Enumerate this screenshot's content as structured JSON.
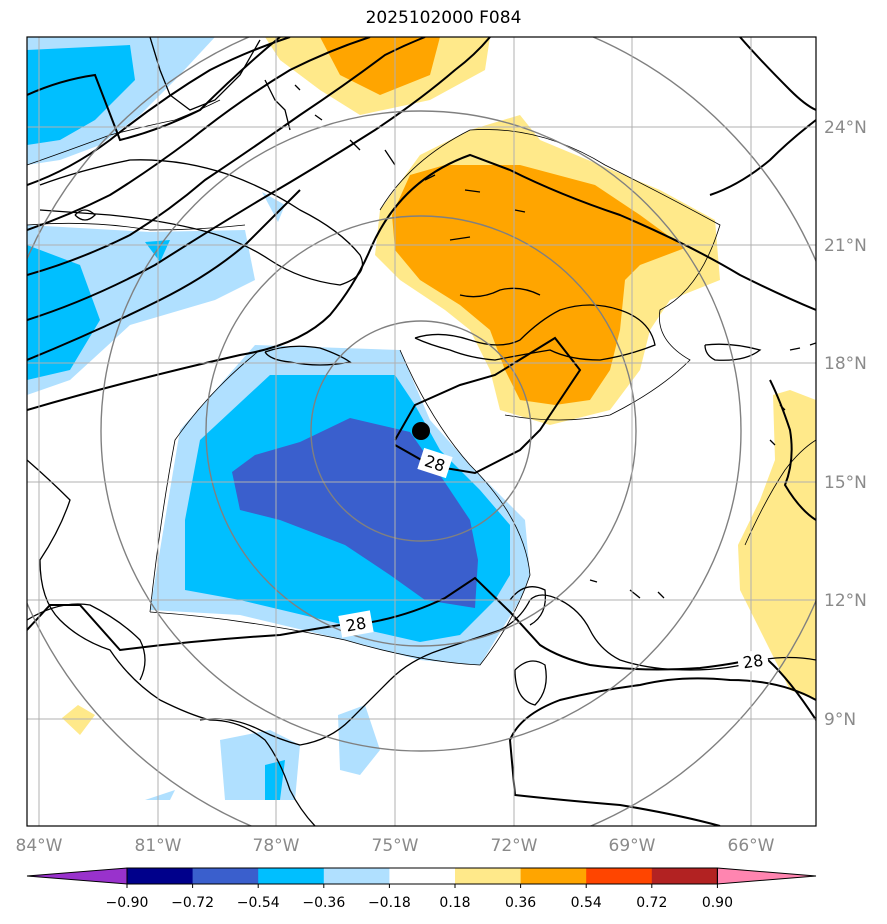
{
  "title": "2025102000 F084",
  "lon_ticks": [
    "84°W",
    "81°W",
    "78°W",
    "75°W",
    "72°W",
    "69°W",
    "66°W"
  ],
  "lat_ticks": [
    "24°N",
    "21°N",
    "18°N",
    "15°N",
    "12°N",
    "9°N"
  ],
  "contour_labels": [
    "28",
    "28",
    "28"
  ],
  "colorbar": {
    "labels": [
      "−0.90",
      "−0.72",
      "−0.54",
      "−0.36",
      "−0.18",
      "0.18",
      "0.36",
      "0.54",
      "0.72",
      "0.90"
    ],
    "colors": [
      "#9932cc",
      "#00008b",
      "#3a5fcd",
      "#00bfff",
      "#b0e0ff",
      "#ffffff",
      "#ffe98a",
      "#ffa500",
      "#ff4500",
      "#b22222",
      "#ff85b0"
    ]
  },
  "colors": {
    "neg_light": "#b0e0ff",
    "neg_mid": "#00bfff",
    "neg_dark": "#3a5fcd",
    "pos_light": "#ffe98a",
    "pos_mid": "#ffa500"
  },
  "storm_marker": "filled-circle"
}
